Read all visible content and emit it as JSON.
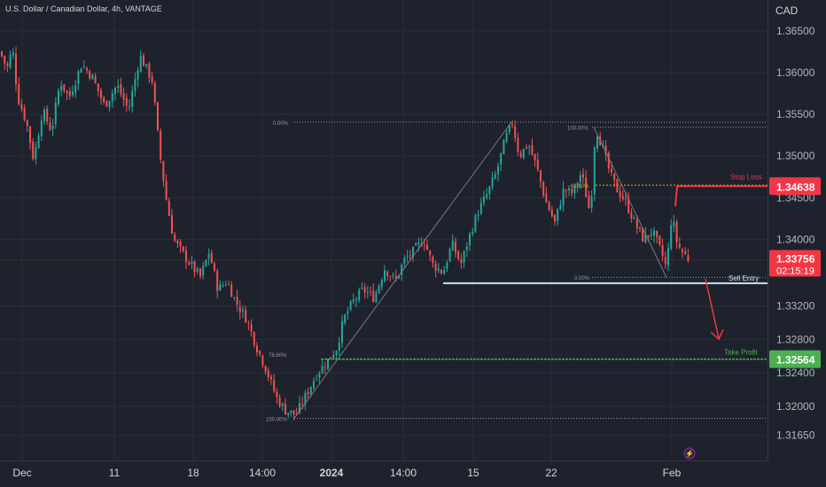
{
  "header": {
    "symbol_title": "U.S. Dollar / Canadian Dollar, 4h, VANTAGE"
  },
  "colors": {
    "background": "#1e222d",
    "grid": "#2a2e39",
    "text": "#b2b5be",
    "up_candle": "#26a69a",
    "down_candle": "#ef5350",
    "stop_loss": "#f23645",
    "take_profit": "#4caf50",
    "entry_line": "#cfe3ff"
  },
  "chart_data": {
    "type": "candlestick",
    "currency": "CAD",
    "y_ticks": [
      "1.36500",
      "1.36000",
      "1.35500",
      "1.35000",
      "1.34500",
      "1.34000",
      "1.33200",
      "1.32800",
      "1.32400",
      "1.32000",
      "1.31650"
    ],
    "x_ticks": [
      "Dec",
      "11",
      "18",
      "14:00",
      "2024",
      "14:00",
      "15",
      "22",
      "Feb"
    ],
    "ylim": [
      1.3135,
      1.3687
    ],
    "grid": true,
    "price_path": [
      [
        0,
        1.3625
      ],
      [
        8,
        1.3605
      ],
      [
        14,
        1.363
      ],
      [
        20,
        1.357
      ],
      [
        30,
        1.354
      ],
      [
        38,
        1.3495
      ],
      [
        48,
        1.3555
      ],
      [
        58,
        1.353
      ],
      [
        68,
        1.359
      ],
      [
        78,
        1.357
      ],
      [
        92,
        1.361
      ],
      [
        104,
        1.3595
      ],
      [
        118,
        1.356
      ],
      [
        132,
        1.3585
      ],
      [
        145,
        1.3555
      ],
      [
        158,
        1.362
      ],
      [
        172,
        1.359
      ],
      [
        180,
        1.3505
      ],
      [
        188,
        1.3445
      ],
      [
        196,
        1.34
      ],
      [
        205,
        1.3385
      ],
      [
        215,
        1.337
      ],
      [
        226,
        1.3355
      ],
      [
        236,
        1.3385
      ],
      [
        246,
        1.334
      ],
      [
        256,
        1.335
      ],
      [
        266,
        1.3325
      ],
      [
        278,
        1.3305
      ],
      [
        290,
        1.327
      ],
      [
        300,
        1.3245
      ],
      [
        312,
        1.321
      ],
      [
        322,
        1.3195
      ],
      [
        334,
        1.319
      ],
      [
        346,
        1.3215
      ],
      [
        358,
        1.324
      ],
      [
        370,
        1.3255
      ],
      [
        380,
        1.327
      ],
      [
        388,
        1.3305
      ],
      [
        398,
        1.3325
      ],
      [
        410,
        1.334
      ],
      [
        422,
        1.333
      ],
      [
        434,
        1.3365
      ],
      [
        446,
        1.335
      ],
      [
        456,
        1.3375
      ],
      [
        466,
        1.3385
      ],
      [
        478,
        1.34
      ],
      [
        488,
        1.337
      ],
      [
        500,
        1.336
      ],
      [
        510,
        1.3395
      ],
      [
        520,
        1.337
      ],
      [
        530,
        1.3405
      ],
      [
        540,
        1.3435
      ],
      [
        550,
        1.3455
      ],
      [
        560,
        1.348
      ],
      [
        570,
        1.352
      ],
      [
        578,
        1.354
      ],
      [
        586,
        1.35
      ],
      [
        596,
        1.3515
      ],
      [
        606,
        1.3485
      ],
      [
        616,
        1.3445
      ],
      [
        626,
        1.342
      ],
      [
        636,
        1.346
      ],
      [
        646,
        1.3455
      ],
      [
        656,
        1.348
      ],
      [
        666,
        1.343
      ],
      [
        672,
        1.3535
      ],
      [
        680,
        1.351
      ],
      [
        688,
        1.348
      ],
      [
        696,
        1.346
      ],
      [
        706,
        1.3445
      ],
      [
        716,
        1.342
      ],
      [
        726,
        1.34
      ],
      [
        736,
        1.341
      ],
      [
        746,
        1.3385
      ],
      [
        752,
        1.3365
      ],
      [
        758,
        1.343
      ],
      [
        764,
        1.3395
      ],
      [
        770,
        1.3385
      ],
      [
        778,
        1.3375
      ]
    ],
    "fibonacci": [
      {
        "from_level": "0.00%",
        "to_level": "100.00%",
        "label_low": "100.00%",
        "label_high": "0.00%",
        "mid_label": "78.60%",
        "price_low": 1.31855,
        "price_high": 1.35405,
        "price_mid": 1.32625
      },
      {
        "from_level": "100.00%",
        "to_level": "0.00%",
        "label_high": "100.00%",
        "label_low": "0.00%",
        "mid_label": "61.80%",
        "price_high": 1.35345,
        "price_low": 1.33545,
        "price_mid": 1.3465
      }
    ],
    "levels": [
      {
        "name": "Stop Loss",
        "label": "Stop Loss",
        "price": 1.34638,
        "badge": "1.34638"
      },
      {
        "name": "Sell Entry",
        "label": "Sell Entry",
        "price": 1.33475
      },
      {
        "name": "Take Profit",
        "label": "Take Profit",
        "price": 1.32564,
        "badge": "1.32564"
      }
    ],
    "current_price": {
      "value": "1.33756",
      "countdown": "02:15:19",
      "price": 1.33756
    },
    "fib_labels": {
      "a_high": "0.00%",
      "a_low": "100.00%",
      "a_mid": "78.60%",
      "b_high": "100.00%",
      "b_low": "0.00%",
      "b_mid": "61.80%"
    }
  }
}
